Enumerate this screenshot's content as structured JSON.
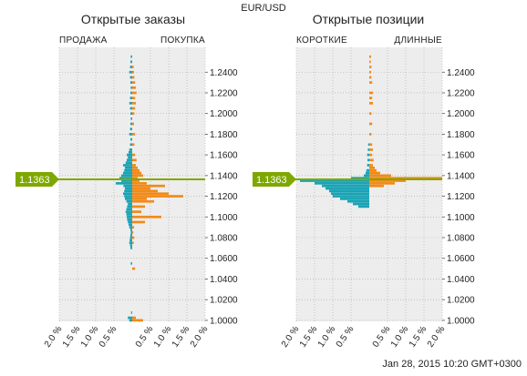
{
  "symbol": "EUR/USD",
  "timestamp": "Jan 28, 2015 10:20 GMT+0300",
  "current_price_label": "1.1363",
  "colors": {
    "left_side": "#1aa3b5",
    "right_side": "#f28a1a",
    "price_line": "#7ea800",
    "plot_bg": "#ededed",
    "grid": "#aaaaaa"
  },
  "chart_data": [
    {
      "type": "bar",
      "orientation": "horizontal-bidirectional",
      "title": "Открытые заказы",
      "left_label": "ПРОДАЖА",
      "right_label": "ПОКУПКА",
      "y_ticks": [
        "1.2400",
        "1.2200",
        "1.2000",
        "1.1800",
        "1.1600",
        "1.1400",
        "1.1200",
        "1.1000",
        "1.0800",
        "1.0600",
        "1.0400",
        "1.0200",
        "1.0000"
      ],
      "x_ticks": [
        "2.0 %",
        "1.5 %",
        "1.0 %",
        "0.5 %",
        "0.5 %",
        "1.0 %",
        "1.5 %",
        "2.0 %"
      ],
      "ylim": [
        0.999,
        1.264
      ],
      "xlim": [
        -2.0,
        2.0
      ],
      "current_price": 1.1363,
      "price_step": 0.0025,
      "left_values": [
        [
          1.0,
          0.08
        ],
        [
          1.0025,
          0.12
        ],
        [
          1.0075,
          0.03
        ],
        [
          1.055,
          0.04
        ],
        [
          1.07,
          0.05
        ],
        [
          1.0725,
          0.06
        ],
        [
          1.075,
          0.08
        ],
        [
          1.0775,
          0.07
        ],
        [
          1.08,
          0.06
        ],
        [
          1.0825,
          0.05
        ],
        [
          1.085,
          0.04
        ],
        [
          1.0875,
          0.05
        ],
        [
          1.09,
          0.08
        ],
        [
          1.0925,
          0.1
        ],
        [
          1.095,
          0.12
        ],
        [
          1.0975,
          0.14
        ],
        [
          1.1,
          0.15
        ],
        [
          1.1025,
          0.16
        ],
        [
          1.105,
          0.18
        ],
        [
          1.1075,
          0.16
        ],
        [
          1.11,
          0.14
        ],
        [
          1.1125,
          0.12
        ],
        [
          1.115,
          0.16
        ],
        [
          1.1175,
          0.2
        ],
        [
          1.12,
          0.22
        ],
        [
          1.1225,
          0.25
        ],
        [
          1.125,
          0.22
        ],
        [
          1.1275,
          0.2
        ],
        [
          1.13,
          0.24
        ],
        [
          1.1325,
          0.45
        ],
        [
          1.135,
          0.3
        ],
        [
          1.1375,
          0.35
        ],
        [
          1.14,
          0.3
        ],
        [
          1.1425,
          0.25
        ],
        [
          1.145,
          0.22
        ],
        [
          1.1475,
          0.2
        ],
        [
          1.15,
          0.25
        ],
        [
          1.1525,
          0.18
        ],
        [
          1.155,
          0.15
        ],
        [
          1.1575,
          0.12
        ],
        [
          1.16,
          0.15
        ],
        [
          1.1625,
          0.1
        ],
        [
          1.165,
          0.08
        ],
        [
          1.17,
          0.06
        ],
        [
          1.175,
          0.05
        ],
        [
          1.18,
          0.08
        ],
        [
          1.185,
          0.06
        ],
        [
          1.19,
          0.05
        ],
        [
          1.195,
          0.04
        ],
        [
          1.2,
          0.05
        ],
        [
          1.205,
          0.06
        ],
        [
          1.21,
          0.08
        ],
        [
          1.215,
          0.06
        ],
        [
          1.22,
          0.05
        ],
        [
          1.225,
          0.04
        ],
        [
          1.23,
          0.05
        ],
        [
          1.235,
          0.06
        ],
        [
          1.24,
          0.08
        ],
        [
          1.245,
          0.06
        ],
        [
          1.25,
          0.05
        ],
        [
          1.255,
          0.04
        ]
      ],
      "right_values": [
        [
          1.0,
          0.3
        ],
        [
          1.0025,
          0.1
        ],
        [
          1.05,
          0.08
        ],
        [
          1.075,
          0.04
        ],
        [
          1.08,
          0.06
        ],
        [
          1.085,
          0.03
        ],
        [
          1.09,
          0.05
        ],
        [
          1.095,
          0.35
        ],
        [
          1.1,
          0.8
        ],
        [
          1.105,
          0.25
        ],
        [
          1.11,
          0.35
        ],
        [
          1.115,
          0.6
        ],
        [
          1.1175,
          0.4
        ],
        [
          1.12,
          1.4
        ],
        [
          1.1225,
          1.0
        ],
        [
          1.125,
          0.7
        ],
        [
          1.1275,
          0.5
        ],
        [
          1.13,
          0.9
        ],
        [
          1.1325,
          0.4
        ],
        [
          1.135,
          0.2
        ],
        [
          1.1375,
          0.15
        ],
        [
          1.14,
          0.3
        ],
        [
          1.1425,
          0.25
        ],
        [
          1.145,
          0.2
        ],
        [
          1.1475,
          0.15
        ],
        [
          1.15,
          0.1
        ],
        [
          1.155,
          0.12
        ],
        [
          1.16,
          0.08
        ],
        [
          1.17,
          0.06
        ],
        [
          1.18,
          0.08
        ],
        [
          1.19,
          0.05
        ],
        [
          1.2,
          0.06
        ],
        [
          1.205,
          0.08
        ],
        [
          1.21,
          0.1
        ],
        [
          1.215,
          0.08
        ],
        [
          1.22,
          0.12
        ],
        [
          1.225,
          0.1
        ],
        [
          1.23,
          0.08
        ],
        [
          1.235,
          0.06
        ],
        [
          1.24,
          0.05
        ],
        [
          1.245,
          0.04
        ]
      ]
    },
    {
      "type": "bar",
      "orientation": "horizontal-bidirectional",
      "title": "Открытые позиции",
      "left_label": "КОРОТКИЕ",
      "right_label": "ДЛИННЫЕ",
      "y_ticks": [
        "1.2400",
        "1.2200",
        "1.2000",
        "1.1800",
        "1.1600",
        "1.1400",
        "1.1200",
        "1.1000",
        "1.0800",
        "1.0600",
        "1.0400",
        "1.0200",
        "1.0000"
      ],
      "x_ticks": [
        "2.0 %",
        "1.5 %",
        "1.0 %",
        "0.5 %",
        "0.5 %",
        "1.0 %",
        "1.5 %",
        "2.0 %"
      ],
      "ylim": [
        0.999,
        1.264
      ],
      "xlim": [
        -2.0,
        2.0
      ],
      "current_price": 1.1363,
      "price_step": 0.0025,
      "left_values": [
        [
          1.11,
          0.3
        ],
        [
          1.1125,
          0.45
        ],
        [
          1.115,
          0.6
        ],
        [
          1.1175,
          0.8
        ],
        [
          1.12,
          1.0
        ],
        [
          1.1225,
          1.05
        ],
        [
          1.125,
          1.1
        ],
        [
          1.1275,
          1.2
        ],
        [
          1.13,
          1.3
        ],
        [
          1.1325,
          1.5
        ],
        [
          1.135,
          1.9
        ],
        [
          1.1375,
          0.5
        ],
        [
          1.14,
          0.15
        ],
        [
          1.1425,
          0.1
        ],
        [
          1.145,
          0.08
        ],
        [
          1.15,
          0.06
        ],
        [
          1.155,
          0.05
        ],
        [
          1.16,
          0.06
        ],
        [
          1.165,
          0.04
        ],
        [
          1.17,
          0.03
        ]
      ],
      "right_values": [
        [
          1.13,
          0.4
        ],
        [
          1.1325,
          0.7
        ],
        [
          1.135,
          1.0
        ],
        [
          1.1375,
          2.0
        ],
        [
          1.14,
          0.6
        ],
        [
          1.1425,
          0.3
        ],
        [
          1.145,
          0.2
        ],
        [
          1.1475,
          0.15
        ],
        [
          1.15,
          0.1
        ],
        [
          1.155,
          0.12
        ],
        [
          1.16,
          0.08
        ],
        [
          1.165,
          0.1
        ],
        [
          1.17,
          0.08
        ],
        [
          1.18,
          0.06
        ],
        [
          1.19,
          0.08
        ],
        [
          1.2,
          0.06
        ],
        [
          1.21,
          0.1
        ],
        [
          1.215,
          0.08
        ],
        [
          1.22,
          0.1
        ],
        [
          1.23,
          0.08
        ],
        [
          1.235,
          0.06
        ],
        [
          1.24,
          0.05
        ],
        [
          1.245,
          0.06
        ],
        [
          1.25,
          0.04
        ],
        [
          1.255,
          0.05
        ]
      ]
    }
  ]
}
